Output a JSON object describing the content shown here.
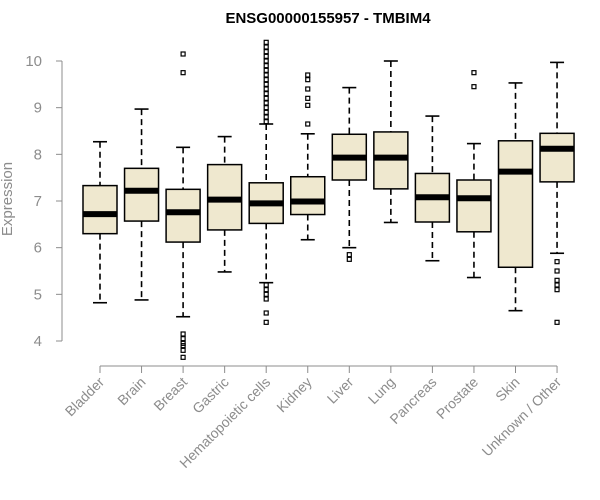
{
  "chart_data": {
    "type": "boxplot",
    "title": "ENSG00000155957 - TMBIM4",
    "ylabel": "Expression",
    "xlabel": "",
    "ylim": [
      3.6,
      10.5
    ],
    "yticks": [
      4,
      5,
      6,
      7,
      8,
      9,
      10
    ],
    "colors": {
      "box_fill": "#efe8cf",
      "stroke": "#000000",
      "axis": "#8c8c8c"
    },
    "series": [
      {
        "name": "Bladder",
        "whisker_low": 4.82,
        "q1": 6.3,
        "median": 6.72,
        "q3": 7.33,
        "whisker_high": 8.27,
        "outliers": []
      },
      {
        "name": "Brain",
        "whisker_low": 4.88,
        "q1": 6.57,
        "median": 7.22,
        "q3": 7.7,
        "whisker_high": 8.97,
        "outliers": []
      },
      {
        "name": "Breast",
        "whisker_low": 4.52,
        "q1": 6.12,
        "median": 6.76,
        "q3": 7.25,
        "whisker_high": 8.15,
        "outliers": [
          10.15,
          9.75,
          4.15,
          4.05,
          3.95,
          3.9,
          3.8,
          3.65
        ]
      },
      {
        "name": "Gastric",
        "whisker_low": 5.48,
        "q1": 6.38,
        "median": 7.03,
        "q3": 7.78,
        "whisker_high": 8.38,
        "outliers": []
      },
      {
        "name": "Hematopoietic cells",
        "whisker_low": 5.25,
        "q1": 6.52,
        "median": 6.95,
        "q3": 7.39,
        "whisker_high": 8.65,
        "outliers": [
          10.4,
          10.3,
          10.2,
          10.1,
          10.0,
          9.9,
          9.8,
          9.7,
          9.6,
          9.5,
          9.4,
          9.3,
          9.2,
          9.1,
          9.0,
          8.9,
          8.8,
          8.7,
          5.2,
          5.1,
          5.0,
          4.9,
          4.6,
          4.4
        ]
      },
      {
        "name": "Kidney",
        "whisker_low": 6.17,
        "q1": 6.71,
        "median": 6.99,
        "q3": 7.52,
        "whisker_high": 8.44,
        "outliers": [
          9.7,
          9.6,
          9.4,
          9.2,
          9.05,
          8.65
        ]
      },
      {
        "name": "Liver",
        "whisker_low": 6.0,
        "q1": 7.45,
        "median": 7.93,
        "q3": 8.43,
        "whisker_high": 9.43,
        "outliers": [
          5.85,
          5.75
        ]
      },
      {
        "name": "Lung",
        "whisker_low": 6.54,
        "q1": 7.26,
        "median": 7.93,
        "q3": 8.48,
        "whisker_high": 10.0,
        "outliers": []
      },
      {
        "name": "Pancreas",
        "whisker_low": 5.72,
        "q1": 6.55,
        "median": 7.08,
        "q3": 7.59,
        "whisker_high": 8.82,
        "outliers": []
      },
      {
        "name": "Prostate",
        "whisker_low": 5.36,
        "q1": 6.34,
        "median": 7.06,
        "q3": 7.45,
        "whisker_high": 8.23,
        "outliers": [
          9.75,
          9.45
        ]
      },
      {
        "name": "Skin",
        "whisker_low": 4.65,
        "q1": 5.58,
        "median": 7.63,
        "q3": 8.29,
        "whisker_high": 9.53,
        "outliers": []
      },
      {
        "name": "Unknown / Other",
        "whisker_low": 5.88,
        "q1": 7.41,
        "median": 8.12,
        "q3": 8.45,
        "whisker_high": 9.97,
        "outliers": [
          5.7,
          5.5,
          5.3,
          5.2,
          5.1,
          4.4
        ]
      }
    ]
  }
}
